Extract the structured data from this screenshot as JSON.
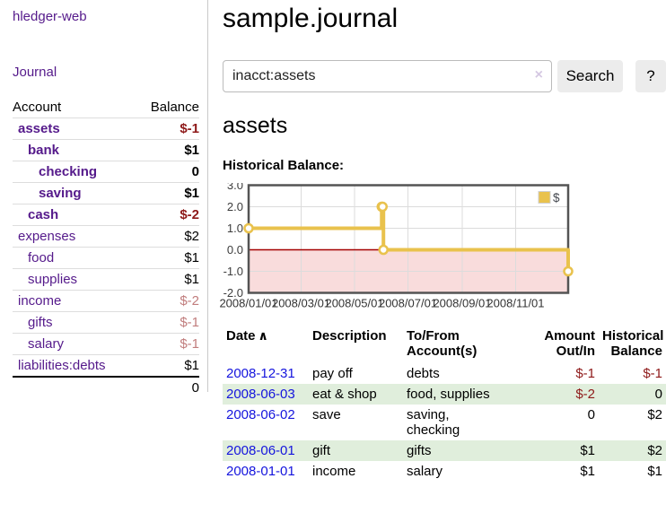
{
  "app": {
    "title": "hledger-web"
  },
  "colors": {
    "link_purple": "#551a8b",
    "link_blue": "#1414dd",
    "negative_strong": "#8e1919",
    "negative_soft": "#c17d7d",
    "row_stripe_green": "#e0eedc",
    "button_gray": "#ececec"
  },
  "sidebar": {
    "journal_link": "Journal",
    "accounts": {
      "header_account": "Account",
      "header_balance": "Balance",
      "rows": [
        {
          "name": "assets",
          "balance": "$-1",
          "indent": 1,
          "emph": true,
          "negative": "strong"
        },
        {
          "name": "bank",
          "balance": "$1",
          "indent": 2,
          "emph": true
        },
        {
          "name": "checking",
          "balance": "0",
          "indent": 3,
          "emph": true
        },
        {
          "name": "saving",
          "balance": "$1",
          "indent": 3,
          "emph": true
        },
        {
          "name": "cash",
          "balance": "$-2",
          "indent": 2,
          "emph": true,
          "negative": "strong"
        },
        {
          "name": "expenses",
          "balance": "$2",
          "indent": 1
        },
        {
          "name": "food",
          "balance": "$1",
          "indent": 2
        },
        {
          "name": "supplies",
          "balance": "$1",
          "indent": 2
        },
        {
          "name": "income",
          "balance": "$-2",
          "indent": 1,
          "negative": "soft"
        },
        {
          "name": "gifts",
          "balance": "$-1",
          "indent": 2,
          "negative": "soft"
        },
        {
          "name": "salary",
          "balance": "$-1",
          "indent": 2,
          "negative": "soft",
          "link_style": "blue"
        },
        {
          "name": "liabilities:debts",
          "balance": "$1",
          "indent": 1
        }
      ],
      "total": "0"
    }
  },
  "main": {
    "title": "sample.journal",
    "search": {
      "value": "inacct:assets",
      "clear_icon": "×",
      "button_label": "Search",
      "help_label": "?"
    },
    "account_heading": "assets",
    "chart_title": "Historical Balance:",
    "register": {
      "headers": [
        "Date",
        "Description",
        "To/From Account(s)",
        "Amount Out/In",
        "Historical Balance"
      ],
      "sort_icon": "∧",
      "rows": [
        {
          "date": "2008-12-31",
          "description": "pay off",
          "accounts": "debts",
          "amount": "$-1",
          "amount_negative": true,
          "balance": "$-1",
          "balance_negative": true
        },
        {
          "date": "2008-06-03",
          "description": "eat & shop",
          "accounts": "food, supplies",
          "amount": "$-2",
          "amount_negative": true,
          "balance": "0"
        },
        {
          "date": "2008-06-02",
          "description": "save",
          "accounts": "saving,\nchecking",
          "amount": "0",
          "balance": "$2"
        },
        {
          "date": "2008-06-01",
          "description": "gift",
          "accounts": "gifts",
          "amount": "$1",
          "balance": "$2"
        },
        {
          "date": "2008-01-01",
          "description": "income",
          "accounts": "salary",
          "amount": "$1",
          "balance": "$1"
        }
      ]
    }
  },
  "chart_data": {
    "type": "line",
    "step": true,
    "title": "Historical Balance",
    "x_range": [
      "2008-01-01",
      "2008-12-31"
    ],
    "ylim": [
      -2.0,
      3.0
    ],
    "yticks": [
      3.0,
      2.0,
      1.0,
      0.0,
      -1.0,
      -2.0
    ],
    "xtick_labels": [
      "2008/01/01",
      "2008/03/01",
      "2008/05/01",
      "2008/07/01",
      "2008/09/01",
      "2008/11/01"
    ],
    "series": [
      {
        "name": "$",
        "color": "#e9c24d",
        "marker_fill": "#ffffff",
        "points": [
          {
            "date": "2008-01-01",
            "value": 1
          },
          {
            "date": "2008-06-01",
            "value": 2
          },
          {
            "date": "2008-06-02",
            "value": 2
          },
          {
            "date": "2008-06-03",
            "value": 0
          },
          {
            "date": "2008-12-31",
            "value": -1
          }
        ]
      }
    ],
    "legend": {
      "label": "$",
      "position": "top-right"
    },
    "grid": true,
    "negative_region_color": "#f9dcdc",
    "zero_line_color": "#a40000",
    "border_color": "#545454",
    "grid_color": "#dcdcdc"
  }
}
